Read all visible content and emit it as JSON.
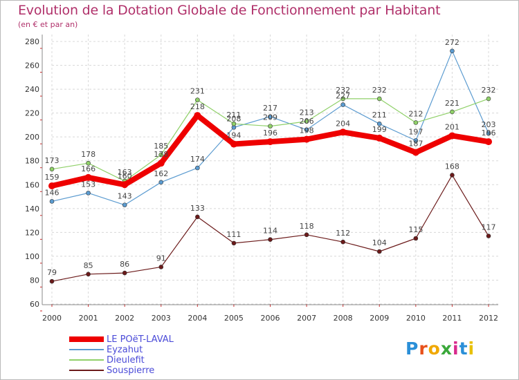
{
  "title": "Evolution de la Dotation Globale de Fonctionnement par Habitant",
  "subtitle": "(en € et par an)",
  "colors": {
    "title": "#b0306a",
    "legend_text": "#4b4bd8",
    "grid": "#d8d8d8",
    "axis": "#888888"
  },
  "chart_data": {
    "type": "line",
    "x": [
      2000,
      2001,
      2002,
      2003,
      2004,
      2005,
      2006,
      2007,
      2008,
      2009,
      2010,
      2011,
      2012
    ],
    "ylim": [
      60,
      280
    ],
    "yticks": [
      60,
      80,
      100,
      120,
      140,
      160,
      180,
      200,
      220,
      240,
      260,
      280
    ],
    "grid": true,
    "legend_position": "bottom-left",
    "series": [
      {
        "name": "Souspierre",
        "color": "#6b1a1a",
        "values": [
          79,
          85,
          86,
          91,
          133,
          111,
          114,
          118,
          112,
          104,
          115,
          168,
          117
        ]
      },
      {
        "name": "Eyzahut",
        "color": "#5b9bd0",
        "values": [
          146,
          153,
          143,
          162,
          174,
          208,
          217,
          206,
          227,
          211,
          197,
          272,
          203
        ]
      },
      {
        "name": "Dieulefit",
        "color": "#8fd068",
        "values": [
          173,
          178,
          163,
          185,
          231,
          211,
          209,
          213,
          232,
          232,
          212,
          221,
          232
        ]
      },
      {
        "name": "LE POëT-LAVAL",
        "color": "#ee0000",
        "values": [
          159,
          166,
          160,
          178,
          218,
          194,
          196,
          198,
          204,
          199,
          187,
          201,
          196
        ]
      }
    ]
  },
  "legend": [
    {
      "name": "LE POëT-LAVAL",
      "color": "#ee0000"
    },
    {
      "name": "Eyzahut",
      "color": "#5b9bd0"
    },
    {
      "name": "Dieulefit",
      "color": "#8fd068"
    },
    {
      "name": "Souspierre",
      "color": "#6b1a1a"
    }
  ],
  "logo": {
    "text": "Proxiti",
    "letter_colors": [
      "#2a8fd8",
      "#e8501a",
      "#f0a800",
      "#3aa83a",
      "#d82a8c",
      "#2a8fd8",
      "#e8c000"
    ]
  }
}
